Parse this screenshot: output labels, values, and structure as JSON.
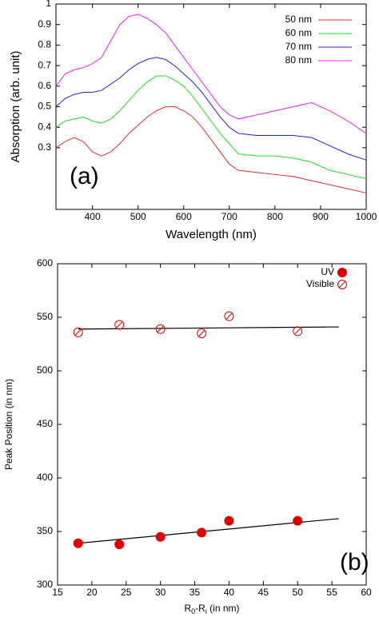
{
  "chart_data": [
    {
      "type": "line",
      "xlabel": "Wavelength (nm)",
      "ylabel": "Absorption (arb. unit)",
      "annotation": "(a)",
      "x": [
        320,
        340,
        360,
        380,
        400,
        420,
        440,
        460,
        480,
        500,
        520,
        540,
        560,
        580,
        600,
        620,
        640,
        660,
        680,
        700,
        720,
        760,
        800,
        840,
        880,
        920,
        960,
        1000
      ],
      "series": [
        {
          "name": "50 nm",
          "color": "#e03030",
          "values": [
            0.3,
            0.33,
            0.35,
            0.33,
            0.28,
            0.26,
            0.28,
            0.32,
            0.37,
            0.41,
            0.45,
            0.48,
            0.5,
            0.5,
            0.48,
            0.45,
            0.4,
            0.34,
            0.28,
            0.22,
            0.19,
            0.18,
            0.17,
            0.16,
            0.14,
            0.12,
            0.1,
            0.08
          ]
        },
        {
          "name": "60 nm",
          "color": "#22dd22",
          "values": [
            0.4,
            0.43,
            0.44,
            0.45,
            0.43,
            0.42,
            0.44,
            0.48,
            0.53,
            0.58,
            0.62,
            0.65,
            0.65,
            0.63,
            0.6,
            0.55,
            0.49,
            0.43,
            0.37,
            0.32,
            0.27,
            0.26,
            0.26,
            0.25,
            0.23,
            0.19,
            0.17,
            0.15
          ]
        },
        {
          "name": "70 nm",
          "color": "#2222cc",
          "values": [
            0.5,
            0.54,
            0.56,
            0.57,
            0.57,
            0.58,
            0.61,
            0.64,
            0.68,
            0.71,
            0.73,
            0.74,
            0.73,
            0.7,
            0.66,
            0.62,
            0.57,
            0.51,
            0.45,
            0.4,
            0.37,
            0.36,
            0.36,
            0.36,
            0.35,
            0.31,
            0.27,
            0.24
          ]
        },
        {
          "name": "80 nm",
          "color": "#ee22ee",
          "values": [
            0.6,
            0.66,
            0.68,
            0.69,
            0.71,
            0.74,
            0.82,
            0.9,
            0.94,
            0.95,
            0.93,
            0.9,
            0.86,
            0.8,
            0.74,
            0.68,
            0.62,
            0.56,
            0.5,
            0.46,
            0.44,
            0.46,
            0.48,
            0.5,
            0.52,
            0.48,
            0.43,
            0.37
          ]
        }
      ],
      "xlim": [
        320,
        1000
      ],
      "xticks": [
        400,
        500,
        600,
        700,
        800,
        900,
        1000
      ],
      "ylim": [
        0,
        1
      ],
      "yticks": [
        0.3,
        0.4,
        0.5,
        0.6,
        0.7,
        0.8,
        0.9,
        1
      ],
      "legend": "upper right"
    },
    {
      "type": "scatter",
      "xlabel_parts": [
        "R",
        "0",
        "-R",
        "i",
        " (in nm)"
      ],
      "ylabel": "Peak Position (in nm)",
      "annotation": "(b)",
      "series": [
        {
          "name": "UV",
          "color": "#e00000",
          "marker": "filled",
          "x": [
            18,
            24,
            30,
            36,
            40,
            50
          ],
          "values": [
            339,
            338,
            345,
            349,
            360,
            360
          ]
        },
        {
          "name": "Visible",
          "color": "#e00000",
          "marker": "open",
          "x": [
            18,
            24,
            30,
            36,
            40,
            50
          ],
          "values": [
            536,
            543,
            539,
            535,
            551,
            537
          ]
        }
      ],
      "fit_lines": [
        {
          "x": [
            18,
            56
          ],
          "values": [
            339,
            362
          ]
        },
        {
          "x": [
            18,
            56
          ],
          "values": [
            539,
            541
          ]
        }
      ],
      "xlim": [
        15,
        60
      ],
      "xticks": [
        15,
        20,
        25,
        30,
        35,
        40,
        45,
        50,
        55,
        60
      ],
      "ylim": [
        300,
        600
      ],
      "yticks": [
        300,
        350,
        400,
        450,
        500,
        550,
        600
      ],
      "legend": "upper right"
    }
  ]
}
